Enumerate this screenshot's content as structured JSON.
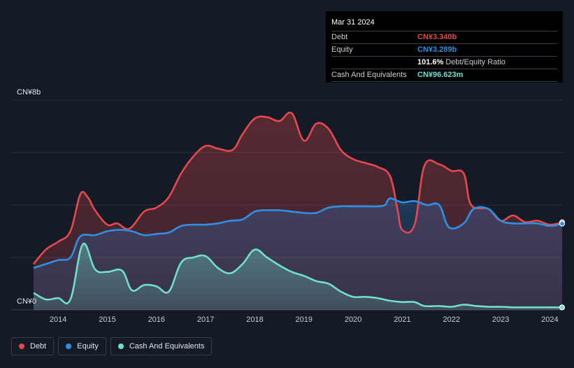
{
  "chart_data": {
    "type": "area",
    "title": "",
    "xlabel": "",
    "ylabel": "",
    "y_unit": "CN¥b",
    "ylim": [
      0,
      8
    ],
    "xlim": [
      2013.5,
      2024.25
    ],
    "y_tick_labels": [
      "CN¥8b",
      "CN¥0"
    ],
    "x_ticks": [
      2014,
      2015,
      2016,
      2017,
      2018,
      2019,
      2020,
      2021,
      2022,
      2023,
      2024
    ],
    "grid": true,
    "legend_position": "bottom-left",
    "series": [
      {
        "name": "Debt",
        "color": "#e5484d",
        "points": [
          [
            2013.5,
            1.75
          ],
          [
            2013.75,
            2.3
          ],
          [
            2014.0,
            2.6
          ],
          [
            2014.25,
            3.0
          ],
          [
            2014.45,
            4.4
          ],
          [
            2014.6,
            4.3
          ],
          [
            2014.75,
            3.8
          ],
          [
            2015.0,
            3.25
          ],
          [
            2015.2,
            3.3
          ],
          [
            2015.45,
            3.1
          ],
          [
            2015.75,
            3.75
          ],
          [
            2016.0,
            3.9
          ],
          [
            2016.25,
            4.3
          ],
          [
            2016.5,
            5.2
          ],
          [
            2016.75,
            5.85
          ],
          [
            2017.0,
            6.25
          ],
          [
            2017.25,
            6.15
          ],
          [
            2017.55,
            6.1
          ],
          [
            2017.75,
            6.7
          ],
          [
            2018.0,
            7.3
          ],
          [
            2018.25,
            7.35
          ],
          [
            2018.5,
            7.2
          ],
          [
            2018.75,
            7.5
          ],
          [
            2019.0,
            6.45
          ],
          [
            2019.25,
            7.1
          ],
          [
            2019.5,
            6.9
          ],
          [
            2019.75,
            6.1
          ],
          [
            2020.0,
            5.75
          ],
          [
            2020.25,
            5.6
          ],
          [
            2020.5,
            5.45
          ],
          [
            2020.75,
            5.1
          ],
          [
            2020.9,
            3.85
          ],
          [
            2021.0,
            3.05
          ],
          [
            2021.25,
            3.25
          ],
          [
            2021.45,
            5.5
          ],
          [
            2021.75,
            5.55
          ],
          [
            2022.0,
            5.3
          ],
          [
            2022.25,
            5.2
          ],
          [
            2022.4,
            4.0
          ],
          [
            2022.75,
            3.85
          ],
          [
            2023.0,
            3.4
          ],
          [
            2023.25,
            3.6
          ],
          [
            2023.5,
            3.35
          ],
          [
            2023.75,
            3.4
          ],
          [
            2024.0,
            3.25
          ],
          [
            2024.25,
            3.34
          ]
        ]
      },
      {
        "name": "Equity",
        "color": "#2f8fe5",
        "points": [
          [
            2013.5,
            1.6
          ],
          [
            2013.75,
            1.75
          ],
          [
            2014.0,
            1.9
          ],
          [
            2014.25,
            2.0
          ],
          [
            2014.45,
            2.8
          ],
          [
            2014.75,
            2.85
          ],
          [
            2015.0,
            3.0
          ],
          [
            2015.25,
            3.05
          ],
          [
            2015.5,
            3.0
          ],
          [
            2015.75,
            2.85
          ],
          [
            2016.0,
            2.9
          ],
          [
            2016.25,
            2.95
          ],
          [
            2016.5,
            3.2
          ],
          [
            2016.75,
            3.25
          ],
          [
            2017.0,
            3.25
          ],
          [
            2017.25,
            3.3
          ],
          [
            2017.5,
            3.4
          ],
          [
            2017.75,
            3.45
          ],
          [
            2018.0,
            3.75
          ],
          [
            2018.25,
            3.8
          ],
          [
            2018.5,
            3.8
          ],
          [
            2018.75,
            3.75
          ],
          [
            2019.0,
            3.7
          ],
          [
            2019.25,
            3.7
          ],
          [
            2019.5,
            3.9
          ],
          [
            2019.75,
            3.95
          ],
          [
            2020.0,
            3.95
          ],
          [
            2020.25,
            3.95
          ],
          [
            2020.5,
            3.95
          ],
          [
            2020.65,
            4.0
          ],
          [
            2020.75,
            4.25
          ],
          [
            2021.0,
            4.1
          ],
          [
            2021.25,
            4.15
          ],
          [
            2021.5,
            4.0
          ],
          [
            2021.75,
            4.0
          ],
          [
            2021.95,
            3.15
          ],
          [
            2022.25,
            3.3
          ],
          [
            2022.45,
            3.85
          ],
          [
            2022.75,
            3.85
          ],
          [
            2023.0,
            3.4
          ],
          [
            2023.25,
            3.3
          ],
          [
            2023.5,
            3.3
          ],
          [
            2023.75,
            3.3
          ],
          [
            2024.0,
            3.2
          ],
          [
            2024.25,
            3.289
          ]
        ]
      },
      {
        "name": "Cash And Equivalents",
        "color": "#6fe0cd",
        "points": [
          [
            2013.5,
            0.65
          ],
          [
            2013.75,
            0.4
          ],
          [
            2014.0,
            0.45
          ],
          [
            2014.25,
            0.4
          ],
          [
            2014.5,
            2.5
          ],
          [
            2014.75,
            1.55
          ],
          [
            2015.0,
            1.45
          ],
          [
            2015.3,
            1.5
          ],
          [
            2015.5,
            0.75
          ],
          [
            2015.75,
            0.95
          ],
          [
            2016.0,
            0.9
          ],
          [
            2016.25,
            0.7
          ],
          [
            2016.5,
            1.8
          ],
          [
            2016.75,
            2.0
          ],
          [
            2017.0,
            2.05
          ],
          [
            2017.25,
            1.6
          ],
          [
            2017.5,
            1.4
          ],
          [
            2017.75,
            1.75
          ],
          [
            2018.0,
            2.3
          ],
          [
            2018.25,
            2.0
          ],
          [
            2018.5,
            1.7
          ],
          [
            2018.75,
            1.45
          ],
          [
            2019.0,
            1.3
          ],
          [
            2019.25,
            1.1
          ],
          [
            2019.5,
            1.0
          ],
          [
            2019.75,
            0.7
          ],
          [
            2020.0,
            0.5
          ],
          [
            2020.25,
            0.5
          ],
          [
            2020.5,
            0.45
          ],
          [
            2020.75,
            0.35
          ],
          [
            2021.0,
            0.3
          ],
          [
            2021.25,
            0.3
          ],
          [
            2021.45,
            0.15
          ],
          [
            2021.75,
            0.15
          ],
          [
            2022.0,
            0.12
          ],
          [
            2022.25,
            0.2
          ],
          [
            2022.5,
            0.15
          ],
          [
            2022.75,
            0.12
          ],
          [
            2023.0,
            0.12
          ],
          [
            2023.25,
            0.1
          ],
          [
            2023.5,
            0.1
          ],
          [
            2023.75,
            0.1
          ],
          [
            2024.0,
            0.1
          ],
          [
            2024.25,
            0.097
          ]
        ]
      }
    ]
  },
  "tooltip": {
    "date": "Mar 31 2024",
    "rows": [
      {
        "label": "Debt",
        "value": "CN¥3.340b",
        "color_key": "debt"
      },
      {
        "label": "Equity",
        "value": "CN¥3.289b",
        "color_key": "equity"
      },
      {
        "label": "",
        "value": "101.6%",
        "suffix": "Debt/Equity Ratio",
        "color_key": "white"
      },
      {
        "label": "Cash And Equivalents",
        "value": "CN¥96.623m",
        "color_key": "cash"
      }
    ]
  },
  "legend": {
    "items": [
      {
        "label": "Debt",
        "color": "#e5484d"
      },
      {
        "label": "Equity",
        "color": "#2f8fe5"
      },
      {
        "label": "Cash And Equivalents",
        "color": "#6fe0cd"
      }
    ]
  }
}
